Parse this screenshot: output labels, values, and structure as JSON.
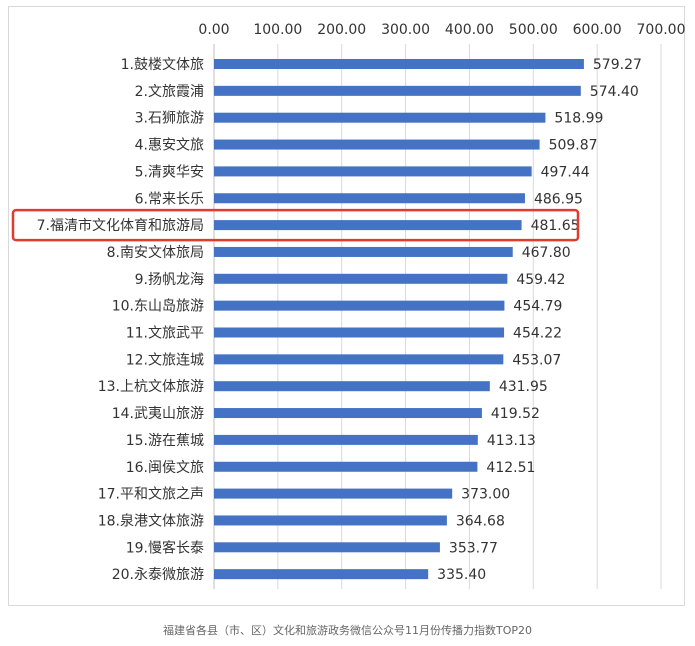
{
  "chart_data": {
    "type": "bar",
    "orientation": "horizontal",
    "categories": [
      "1.鼓楼文体旅",
      "2.文旅霞浦",
      "3.石狮旅游",
      "4.惠安文旅",
      "5.清爽华安",
      "6.常来长乐",
      "7.福清市文化体育和旅游局",
      "8.南安文体旅局",
      "9.扬帆龙海",
      "10.东山岛旅游",
      "11.文旅武平",
      "12.文旅连城",
      "13.上杭文体旅游",
      "14.武夷山旅游",
      "15.游在蕉城",
      "16.闽侯文旅",
      "17.平和文旅之声",
      "18.泉港文体旅游",
      "19.慢客长泰",
      "20.永泰微旅游"
    ],
    "values": [
      579.27,
      574.4,
      518.99,
      509.87,
      497.44,
      486.95,
      481.65,
      467.8,
      459.42,
      454.79,
      454.22,
      453.07,
      431.95,
      419.52,
      413.13,
      412.51,
      373.0,
      364.68,
      353.77,
      335.4
    ],
    "value_labels": [
      "579.27",
      "574.40",
      "518.99",
      "509.87",
      "497.44",
      "486.95",
      "481.65",
      "467.80",
      "459.42",
      "454.79",
      "454.22",
      "453.07",
      "431.95",
      "419.52",
      "413.13",
      "412.51",
      "373.00",
      "364.68",
      "353.77",
      "335.40"
    ],
    "xticks": [
      "0.00",
      "100.00",
      "200.00",
      "300.00",
      "400.00",
      "500.00",
      "600.00",
      "700.00"
    ],
    "xlim": [
      0,
      700
    ],
    "axis_position": "top",
    "grid": true,
    "highlighted_index": 6,
    "highlight_color": "#e03b2f",
    "bar_color": "#4472c4",
    "title": ""
  },
  "caption": "福建省各县（市、区）文化和旅游政务微信公众号11月份传播力指数TOP20"
}
